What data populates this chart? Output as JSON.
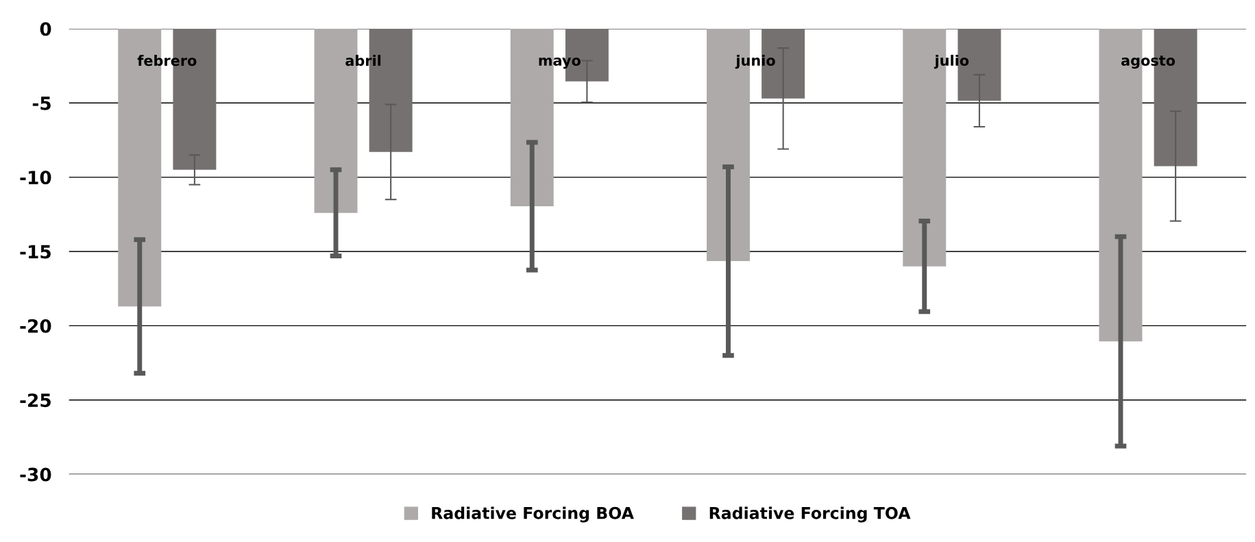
{
  "chart_data": {
    "type": "bar",
    "categories": [
      "febrero",
      "abril",
      "mayo",
      "junio",
      "julio",
      "agosto"
    ],
    "series": [
      {
        "name": "Radiative Forcing BOA",
        "color": "#aeaaaa",
        "values": [
          -18.7,
          -12.4,
          -11.95,
          -15.65,
          -16.0,
          -21.05
        ],
        "errors": [
          4.5,
          2.9,
          4.3,
          6.35,
          3.05,
          7.05
        ]
      },
      {
        "name": "Radiative Forcing TOA",
        "color": "#767171",
        "values": [
          -9.5,
          -8.3,
          -3.55,
          -4.7,
          -4.85,
          -9.25
        ],
        "errors": [
          1.0,
          3.2,
          1.4,
          3.4,
          1.75,
          3.7
        ]
      }
    ],
    "ylim": [
      -30,
      0
    ],
    "yticks": [
      -30,
      -25,
      -20,
      -15,
      -10,
      -5,
      0
    ],
    "grid": "y",
    "legend": "bottom"
  }
}
